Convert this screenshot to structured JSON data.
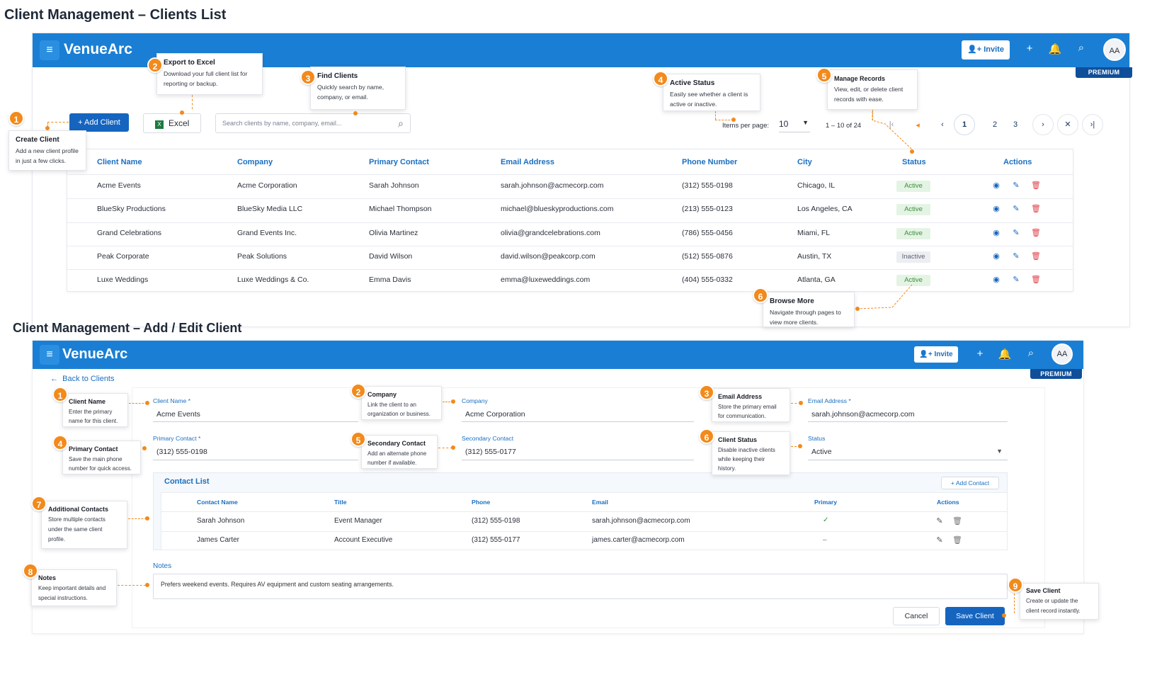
{
  "titles": {
    "list": "Client Management – Clients List",
    "edit": "Client Management – Add / Edit Client"
  },
  "colors": {
    "topbar": "#1a7fd4",
    "primary": "#1565c0",
    "accent_callout": "#f28a1c",
    "premium": "#0f4f9a",
    "status_active": "#3c8c3c"
  },
  "app": {
    "brand": "VenueArc",
    "invite": "Invite",
    "avatar": "AA",
    "premium": "PREMIUM",
    "icons": [
      "menu-icon",
      "user-plus-icon",
      "plus-icon",
      "bell-icon",
      "search-icon"
    ]
  },
  "list": {
    "add_client": "Add Client",
    "excel": "Excel",
    "search_placeholder": "Search clients by name, company, email...",
    "items_per_page_label": "Items per page:",
    "items_per_page_value": "10",
    "range": "1 – 10 of 24",
    "pages": [
      "1",
      "2",
      "3"
    ],
    "current_page": "1",
    "columns": [
      "Client Name",
      "Company",
      "Primary Contact",
      "Email Address",
      "Phone Number",
      "City",
      "Status",
      "Actions"
    ],
    "rows": [
      {
        "name": "Acme Events",
        "company": "Acme Corporation",
        "contact": "Sarah Johnson",
        "email": "sarah.johnson@acmecorp.com",
        "phone": "(312) 555-0198",
        "city": "Chicago, IL",
        "status": "Active"
      },
      {
        "name": "BlueSky Productions",
        "company": "BlueSky Media LLC",
        "contact": "Michael Thompson",
        "email": "michael@blueskyproductions.com",
        "phone": "(213) 555-0123",
        "city": "Los Angeles, CA",
        "status": "Active"
      },
      {
        "name": "Grand Celebrations",
        "company": "Grand Events Inc.",
        "contact": "Olivia Martinez",
        "email": "olivia@grandcelebrations.com",
        "phone": "(786) 555-0456",
        "city": "Miami, FL",
        "status": "Active"
      },
      {
        "name": "Peak Corporate",
        "company": "Peak Solutions",
        "contact": "David Wilson",
        "email": "david.wilson@peakcorp.com",
        "phone": "(512) 555-0876",
        "city": "Austin, TX",
        "status": "Inactive"
      },
      {
        "name": "Luxe Weddings",
        "company": "Luxe Weddings & Co.",
        "contact": "Emma Davis",
        "email": "emma@luxeweddings.com",
        "phone": "(404) 555-0332",
        "city": "Atlanta, GA",
        "status": "Active"
      }
    ],
    "callouts": [
      {
        "num": "1",
        "title": "Create Client",
        "desc": "Add a new client profile in just a few clicks."
      },
      {
        "num": "2",
        "title": "Export to Excel",
        "desc": "Download your full client list for reporting or backup."
      },
      {
        "num": "3",
        "title": "Find Clients",
        "desc": "Quickly search by name, company, or email."
      },
      {
        "num": "4",
        "title": "Active Status",
        "desc": "Easily see whether a client is active or inactive."
      },
      {
        "num": "5",
        "title": "Manage Records",
        "desc": "View, edit, or delete client records with ease."
      },
      {
        "num": "6",
        "title": "Browse More",
        "desc": "Navigate through pages to view more clients."
      }
    ]
  },
  "edit": {
    "back": "Back to Clients",
    "fields": {
      "client_name": {
        "label": "Client Name *",
        "value": "Acme Events"
      },
      "company": {
        "label": "Company",
        "value": "Acme Corporation"
      },
      "email": {
        "label": "Email Address *",
        "value": "sarah.johnson@acmecorp.com"
      },
      "primary_contact": {
        "label": "Primary Contact *",
        "value": "(312) 555-0198"
      },
      "secondary_contact": {
        "label": "Secondary Contact",
        "value": "(312) 555-0177"
      },
      "status": {
        "label": "Status",
        "value": "Active"
      }
    },
    "contact_list": {
      "title": "Contact List",
      "add": "Add Contact",
      "columns": [
        "Contact Name",
        "Title",
        "Phone",
        "Email",
        "Primary",
        "Actions"
      ],
      "rows": [
        {
          "name": "Sarah Johnson",
          "title": "Event Manager",
          "phone": "(312) 555-0198",
          "email": "sarah.johnson@acmecorp.com",
          "primary": "✓"
        },
        {
          "name": "James Carter",
          "title": "Account Executive",
          "phone": "(312) 555-0177",
          "email": "james.carter@acmecorp.com",
          "primary": "–"
        }
      ]
    },
    "notes": {
      "label": "Notes",
      "value": "Prefers weekend events. Requires AV equipment and custom seating arrangements."
    },
    "cancel": "Cancel",
    "save": "Save Client",
    "callouts": [
      {
        "num": "1",
        "title": "Client Name",
        "desc": "Enter the primary name for this client."
      },
      {
        "num": "2",
        "title": "Company",
        "desc": "Link the client to an organization or business."
      },
      {
        "num": "3",
        "title": "Email Address",
        "desc": "Store the primary email for communication."
      },
      {
        "num": "4",
        "title": "Primary Contact",
        "desc": "Save the main phone number for quick access."
      },
      {
        "num": "5",
        "title": "Secondary Contact",
        "desc": "Add an alternate phone number if available."
      },
      {
        "num": "6",
        "title": "Client Status",
        "desc": "Disable inactive clients while keeping their history."
      },
      {
        "num": "7",
        "title": "Additional Contacts",
        "desc": "Store multiple contacts under the same client profile."
      },
      {
        "num": "8",
        "title": "Notes",
        "desc": "Keep important details and special instructions."
      },
      {
        "num": "9",
        "title": "Save Client",
        "desc": "Create or update the client record instantly."
      }
    ]
  }
}
